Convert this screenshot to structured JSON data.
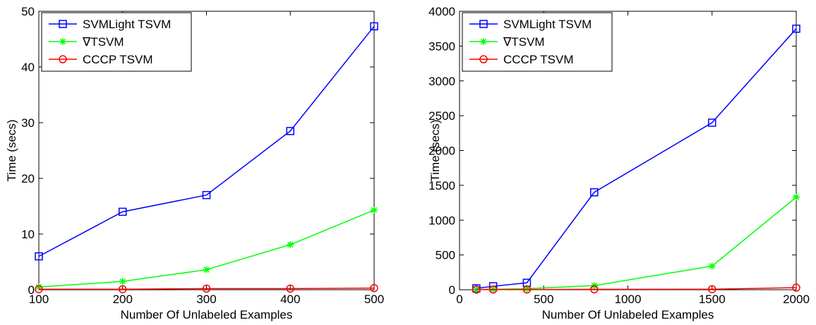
{
  "chart_data": [
    {
      "type": "line",
      "xlabel": "Number Of Unlabeled Examples",
      "ylabel": "Time (secs)",
      "xlim": [
        100,
        500
      ],
      "ylim": [
        0,
        50
      ],
      "xticks": [
        100,
        200,
        300,
        400,
        500
      ],
      "yticks": [
        0,
        10,
        20,
        30,
        40,
        50
      ],
      "xtick_labels": [
        "100",
        "200",
        "300",
        "400",
        "500"
      ],
      "ytick_labels": [
        "0",
        "10",
        "20",
        "30",
        "40",
        "50"
      ],
      "grid": false,
      "legend_position": "top-left",
      "x": [
        100,
        200,
        300,
        400,
        500
      ],
      "series": [
        {
          "name": "SVMLight TSVM",
          "color": "#0000ff",
          "marker": "square",
          "values": [
            6,
            14,
            17,
            28.5,
            47.3
          ]
        },
        {
          "name": "∇TSVM",
          "color": "#00ff00",
          "marker": "asterisk",
          "values": [
            0.5,
            1.5,
            3.6,
            8.1,
            14.3
          ]
        },
        {
          "name": "CCCP TSVM",
          "color": "#ff0000",
          "marker": "circle",
          "values": [
            0.1,
            0.1,
            0.2,
            0.2,
            0.3
          ]
        }
      ]
    },
    {
      "type": "line",
      "xlabel": "Number Of Unlabeled Examples",
      "ylabel": "Time (secs)",
      "xlim": [
        0,
        2000
      ],
      "ylim": [
        0,
        4000
      ],
      "xticks": [
        0,
        500,
        1000,
        1500,
        2000
      ],
      "yticks": [
        0,
        500,
        1000,
        1500,
        2000,
        2500,
        3000,
        3500,
        4000
      ],
      "xtick_labels": [
        "0",
        "500",
        "1000",
        "1500",
        "2000"
      ],
      "ytick_labels": [
        "0",
        "500",
        "1000",
        "1500",
        "2000",
        "2500",
        "3000",
        "3500",
        "4000"
      ],
      "grid": false,
      "legend_position": "top-left",
      "x": [
        100,
        200,
        400,
        800,
        1500,
        2000
      ],
      "series": [
        {
          "name": "SVMLight TSVM",
          "color": "#0000ff",
          "marker": "square",
          "values": [
            20,
            50,
            100,
            1400,
            2400,
            3750
          ]
        },
        {
          "name": "∇TSVM",
          "color": "#00ff00",
          "marker": "asterisk",
          "values": [
            5,
            8,
            15,
            60,
            340,
            1330
          ]
        },
        {
          "name": "CCCP TSVM",
          "color": "#ff0000",
          "marker": "circle",
          "values": [
            2,
            3,
            4,
            6,
            8,
            30
          ]
        }
      ]
    }
  ]
}
